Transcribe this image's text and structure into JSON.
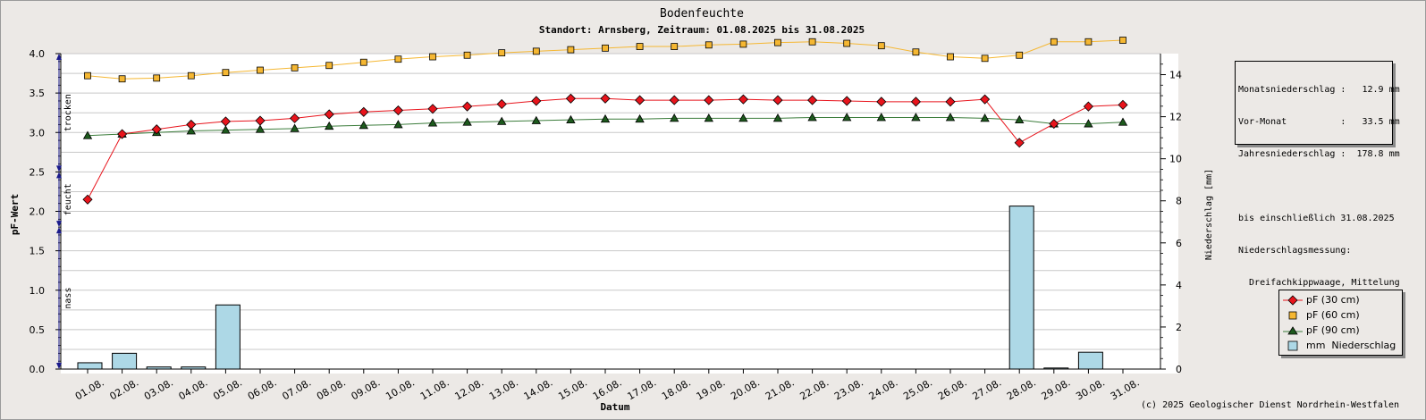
{
  "header": {
    "title": "Bodenfeuchte",
    "subtitle": "Standort: Arnsberg, Zeitraum: 01.08.2025 bis 31.08.2025"
  },
  "info_box": {
    "lines": [
      "Monatsniederschlag :   12.9 mm",
      "Vor-Monat          :   33.5 mm",
      "Jahresniederschlag :  178.8 mm",
      "",
      "bis einschließlich 31.08.2025",
      "Niederschlagsmessung:",
      "  Dreifachkippwaage, Mittelung"
    ]
  },
  "zones": [
    {
      "label": "trocken",
      "from": 2.5,
      "to": 4.0
    },
    {
      "label": "feucht",
      "from": 1.8,
      "to": 2.5
    },
    {
      "label": "nass",
      "from": 0.0,
      "to": 1.8
    }
  ],
  "footer": {
    "copyright": "(c) 2025 Geologischer Dienst Nordrhein-Westfalen"
  },
  "colors": {
    "pf30": "#e8141c",
    "pf60": "#f5b732",
    "pf90": "#1d5a1d",
    "rain": "#add8e6",
    "pf90_line": "#3c7d3c",
    "pf60_line": "#f5b732"
  },
  "chart_data": {
    "type": "line",
    "xlabel": "Datum",
    "ylabel": "pF-Wert",
    "y2label": "Niederschlag [mm]",
    "ylim": [
      0,
      4.0
    ],
    "y2lim": [
      0,
      15
    ],
    "yticks": [
      "0.0",
      "0.5",
      "1.0",
      "1.5",
      "2.0",
      "2.5",
      "3.0",
      "3.5",
      "4.0"
    ],
    "y2ticks": [
      "0",
      "2",
      "4",
      "6",
      "8",
      "10",
      "12",
      "14"
    ],
    "grid": true,
    "legend_position": "bottom-right",
    "categories": [
      "01.08.",
      "02.08.",
      "03.08.",
      "04.08.",
      "05.08.",
      "06.08.",
      "07.08.",
      "08.08.",
      "09.08.",
      "10.08.",
      "11.08.",
      "12.08.",
      "13.08.",
      "14.08.",
      "15.08.",
      "16.08.",
      "17.08.",
      "18.08.",
      "19.08.",
      "20.08.",
      "21.08.",
      "22.08.",
      "23.08.",
      "24.08.",
      "25.08.",
      "26.08.",
      "27.08.",
      "28.08.",
      "29.08.",
      "30.08.",
      "31.08."
    ],
    "series": [
      {
        "name": "pF (30 cm)",
        "axis": "left",
        "marker": "diamond",
        "values": [
          2.15,
          2.98,
          3.04,
          3.1,
          3.14,
          3.15,
          3.18,
          3.23,
          3.26,
          3.28,
          3.3,
          3.33,
          3.36,
          3.4,
          3.43,
          3.43,
          3.41,
          3.41,
          3.41,
          3.42,
          3.41,
          3.41,
          3.4,
          3.39,
          3.39,
          3.39,
          3.42,
          2.87,
          3.11,
          3.33,
          3.35
        ]
      },
      {
        "name": "pF (60 cm)",
        "axis": "left",
        "marker": "square",
        "values": [
          3.72,
          3.68,
          3.69,
          3.72,
          3.76,
          3.79,
          3.82,
          3.85,
          3.89,
          3.93,
          3.96,
          3.98,
          4.01,
          4.03,
          4.05,
          4.07,
          4.09,
          4.09,
          4.11,
          4.12,
          4.14,
          4.15,
          4.13,
          4.1,
          4.02,
          3.96,
          3.94,
          3.98,
          4.15,
          4.15,
          4.17
        ]
      },
      {
        "name": "pF (90 cm)",
        "axis": "left",
        "marker": "triangle",
        "values": [
          2.96,
          2.98,
          3.0,
          3.02,
          3.03,
          3.04,
          3.05,
          3.08,
          3.09,
          3.1,
          3.12,
          3.13,
          3.14,
          3.15,
          3.16,
          3.17,
          3.17,
          3.18,
          3.18,
          3.18,
          3.18,
          3.19,
          3.19,
          3.19,
          3.19,
          3.19,
          3.18,
          3.16,
          3.11,
          3.11,
          3.13
        ]
      },
      {
        "name": "mm  Niederschlag",
        "axis": "right",
        "marker": "bar",
        "values": [
          0.3,
          0.75,
          0.1,
          0.1,
          3.05,
          0,
          0,
          0,
          0,
          0,
          0,
          0,
          0,
          0,
          0,
          0,
          0,
          0,
          0,
          0,
          0,
          0,
          0,
          0,
          0,
          0,
          0,
          7.75,
          0.05,
          0.8,
          0
        ]
      }
    ]
  }
}
